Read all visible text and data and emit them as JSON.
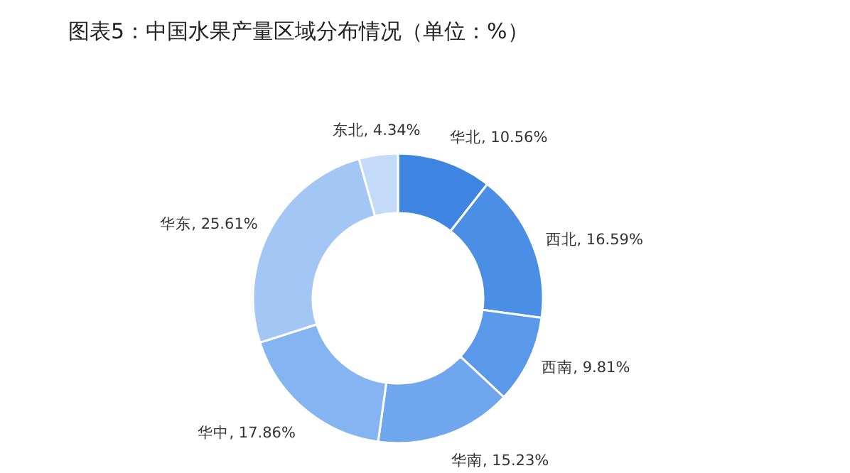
{
  "chart_data": {
    "type": "donut",
    "title": "图表5：中国水果产量区域分布情况（单位：%）",
    "categories": [
      "华北",
      "西北",
      "西南",
      "华南",
      "华中",
      "华东",
      "东北"
    ],
    "values": [
      10.56,
      16.59,
      9.81,
      15.23,
      17.86,
      25.61,
      4.34
    ],
    "value_labels": [
      "10.56%",
      "16.59%",
      "9.81%",
      "15.23%",
      "17.86%",
      "25.61%",
      "4.34%"
    ],
    "colors": [
      "#3d85e0",
      "#4a8ee6",
      "#5a98ea",
      "#6fa6ee",
      "#84b4f1",
      "#a3c6f5",
      "#c3daf8"
    ]
  }
}
